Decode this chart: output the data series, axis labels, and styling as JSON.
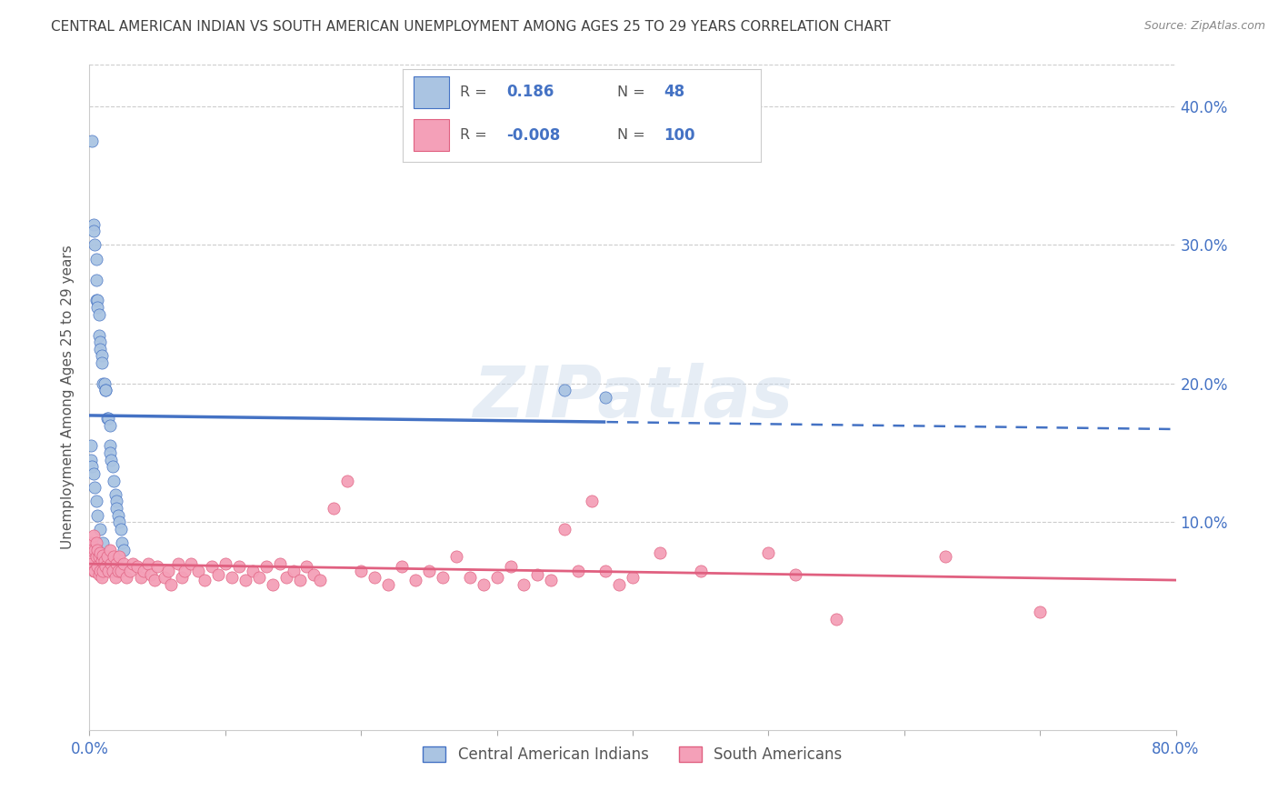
{
  "title": "CENTRAL AMERICAN INDIAN VS SOUTH AMERICAN UNEMPLOYMENT AMONG AGES 25 TO 29 YEARS CORRELATION CHART",
  "source": "Source: ZipAtlas.com",
  "ylabel": "Unemployment Among Ages 25 to 29 years",
  "legend_label1": "Central American Indians",
  "legend_label2": "South Americans",
  "R1": 0.186,
  "N1": 48,
  "R2": -0.008,
  "N2": 100,
  "color1": "#aac4e2",
  "color1_line": "#4472c4",
  "color2": "#f4a0b8",
  "color2_line": "#e06080",
  "right_axis_color": "#4472c4",
  "title_color": "#404040",
  "source_color": "#888888",
  "xlim": [
    0.0,
    0.8
  ],
  "ylim": [
    -0.05,
    0.43
  ],
  "yticks": [
    0.1,
    0.2,
    0.3,
    0.4
  ],
  "xtick_show": [
    0.0,
    0.8
  ],
  "xtick_all": [
    0.0,
    0.1,
    0.2,
    0.3,
    0.4,
    0.5,
    0.6,
    0.7,
    0.8
  ],
  "blue_x": [
    0.002,
    0.003,
    0.003,
    0.004,
    0.005,
    0.005,
    0.005,
    0.006,
    0.006,
    0.007,
    0.007,
    0.008,
    0.008,
    0.009,
    0.009,
    0.01,
    0.011,
    0.012,
    0.012,
    0.013,
    0.014,
    0.015,
    0.015,
    0.015,
    0.016,
    0.017,
    0.018,
    0.019,
    0.02,
    0.02,
    0.021,
    0.022,
    0.023,
    0.024,
    0.025,
    0.001,
    0.001,
    0.002,
    0.003,
    0.004,
    0.005,
    0.006,
    0.008,
    0.01,
    0.013,
    0.016,
    0.35,
    0.38
  ],
  "blue_y": [
    0.375,
    0.315,
    0.31,
    0.3,
    0.29,
    0.275,
    0.26,
    0.26,
    0.255,
    0.25,
    0.235,
    0.23,
    0.225,
    0.22,
    0.215,
    0.2,
    0.2,
    0.195,
    0.195,
    0.175,
    0.175,
    0.17,
    0.155,
    0.15,
    0.145,
    0.14,
    0.13,
    0.12,
    0.115,
    0.11,
    0.105,
    0.1,
    0.095,
    0.085,
    0.08,
    0.155,
    0.145,
    0.14,
    0.135,
    0.125,
    0.115,
    0.105,
    0.095,
    0.085,
    0.075,
    0.065,
    0.195,
    0.19
  ],
  "pink_x": [
    0.001,
    0.001,
    0.002,
    0.002,
    0.003,
    0.003,
    0.004,
    0.004,
    0.005,
    0.005,
    0.006,
    0.006,
    0.007,
    0.007,
    0.008,
    0.008,
    0.009,
    0.009,
    0.01,
    0.01,
    0.011,
    0.012,
    0.013,
    0.014,
    0.015,
    0.016,
    0.017,
    0.018,
    0.019,
    0.02,
    0.021,
    0.022,
    0.023,
    0.025,
    0.027,
    0.03,
    0.032,
    0.035,
    0.038,
    0.04,
    0.043,
    0.045,
    0.048,
    0.05,
    0.055,
    0.058,
    0.06,
    0.065,
    0.068,
    0.07,
    0.075,
    0.08,
    0.085,
    0.09,
    0.095,
    0.1,
    0.105,
    0.11,
    0.115,
    0.12,
    0.125,
    0.13,
    0.135,
    0.14,
    0.145,
    0.15,
    0.155,
    0.16,
    0.165,
    0.17,
    0.18,
    0.19,
    0.2,
    0.21,
    0.22,
    0.23,
    0.24,
    0.25,
    0.26,
    0.27,
    0.28,
    0.29,
    0.3,
    0.31,
    0.32,
    0.33,
    0.34,
    0.35,
    0.36,
    0.37,
    0.38,
    0.39,
    0.4,
    0.42,
    0.45,
    0.5,
    0.52,
    0.55,
    0.63,
    0.7
  ],
  "pink_y": [
    0.085,
    0.075,
    0.08,
    0.07,
    0.09,
    0.065,
    0.08,
    0.065,
    0.085,
    0.075,
    0.08,
    0.068,
    0.075,
    0.062,
    0.078,
    0.065,
    0.072,
    0.06,
    0.076,
    0.065,
    0.072,
    0.068,
    0.075,
    0.065,
    0.08,
    0.07,
    0.065,
    0.075,
    0.06,
    0.07,
    0.065,
    0.075,
    0.065,
    0.07,
    0.06,
    0.065,
    0.07,
    0.068,
    0.06,
    0.065,
    0.07,
    0.062,
    0.058,
    0.068,
    0.06,
    0.065,
    0.055,
    0.07,
    0.06,
    0.065,
    0.07,
    0.065,
    0.058,
    0.068,
    0.062,
    0.07,
    0.06,
    0.068,
    0.058,
    0.065,
    0.06,
    0.068,
    0.055,
    0.07,
    0.06,
    0.065,
    0.058,
    0.068,
    0.062,
    0.058,
    0.11,
    0.13,
    0.065,
    0.06,
    0.055,
    0.068,
    0.058,
    0.065,
    0.06,
    0.075,
    0.06,
    0.055,
    0.06,
    0.068,
    0.055,
    0.062,
    0.058,
    0.095,
    0.065,
    0.115,
    0.065,
    0.055,
    0.06,
    0.078,
    0.065,
    0.078,
    0.062,
    0.03,
    0.075,
    0.035
  ],
  "background_color": "#ffffff",
  "grid_color": "#cccccc",
  "watermark": "ZIPatlas",
  "blue_line_switch": 0.38
}
